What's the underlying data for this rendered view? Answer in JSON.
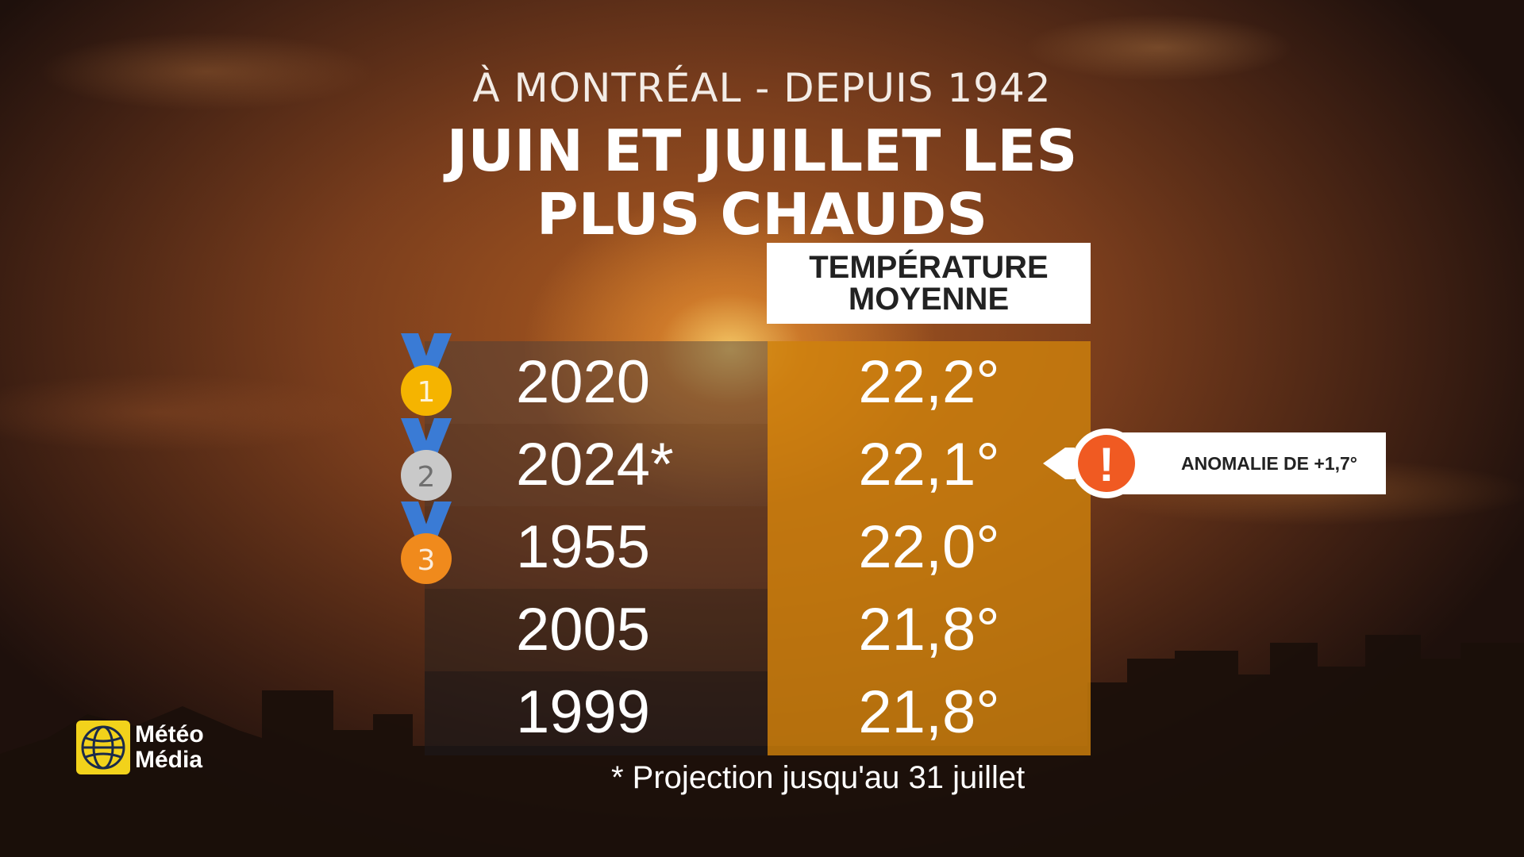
{
  "subtitle": "À MONTRÉAL - DEPUIS 1942",
  "title": "JUIN ET JUILLET LES PLUS CHAUDS",
  "title_lines": [
    "JUIN ET JUILLET LES",
    "PLUS CHAUDS"
  ],
  "column_header": [
    "TEMPÉRATURE",
    "MOYENNE"
  ],
  "chart_data": {
    "type": "table",
    "title": "JUIN ET JUILLET LES PLUS CHAUDS",
    "subtitle": "À MONTRÉAL - DEPUIS 1942",
    "columns": [
      "",
      "TEMPÉRATURE MOYENNE"
    ],
    "rows": [
      {
        "rank": 1,
        "year": "2020",
        "temperature": "22,2°",
        "value": 22.2,
        "medal": "gold"
      },
      {
        "rank": 2,
        "year": "2024*",
        "temperature": "22,1°",
        "value": 22.1,
        "medal": "silver"
      },
      {
        "rank": 3,
        "year": "1955",
        "temperature": "22,0°",
        "value": 22.0,
        "medal": "bronze"
      },
      {
        "rank": 4,
        "year": "2005",
        "temperature": "21,8°",
        "value": 21.8,
        "medal": ""
      },
      {
        "rank": 5,
        "year": "1999",
        "temperature": "21,8°",
        "value": 21.8,
        "medal": ""
      }
    ],
    "annotations": [
      "ANOMALIE DE +1,7°"
    ]
  },
  "medals": [
    {
      "number": "1",
      "icon": "gold-medal-icon",
      "color": "#f5b400",
      "ribbon": "#3a7bd5"
    },
    {
      "number": "2",
      "icon": "silver-medal-icon",
      "color": "#c9c9c9",
      "ribbon": "#3a7bd5"
    },
    {
      "number": "3",
      "icon": "bronze-medal-icon",
      "color": "#f08a1c",
      "ribbon": "#3a7bd5"
    }
  ],
  "callout": {
    "icon": "exclamation-icon",
    "symbol": "!",
    "text": "ANOMALIE DE +1,7°",
    "accent": "#f05a22"
  },
  "logo": {
    "line1": "Météo",
    "line2": "Média",
    "icon": "globe-logo-icon",
    "accent": "#f2d21b"
  },
  "footnote": "* Projection jusqu'au 31 juillet"
}
